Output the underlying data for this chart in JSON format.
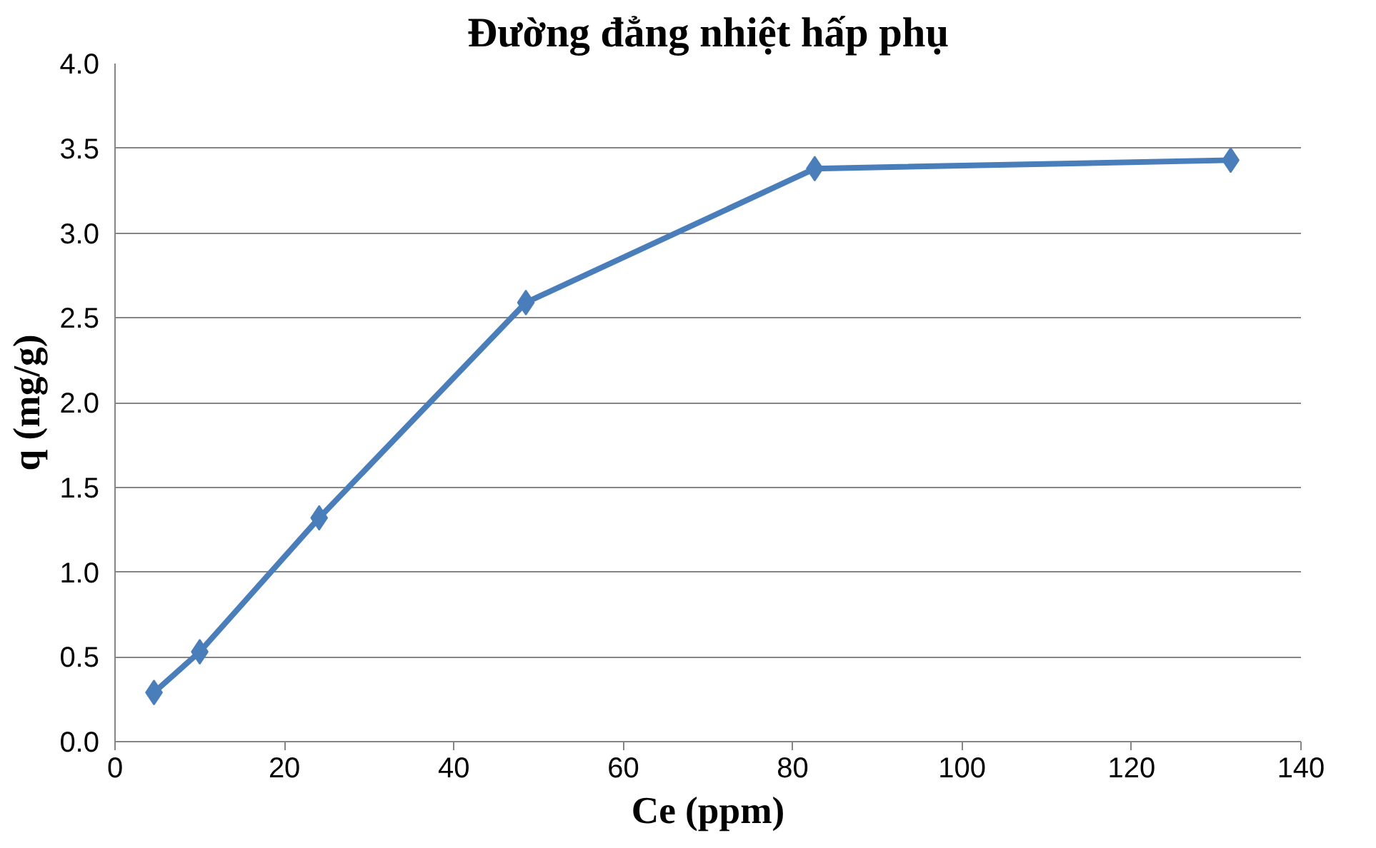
{
  "chart_data": {
    "type": "line",
    "title": "Đường đẳng nhiệt hấp phụ",
    "xlabel": "Ce (ppm)",
    "ylabel": "q (mg/g)",
    "x": [
      4.6,
      10.0,
      24.1,
      48.5,
      82.6,
      131.7
    ],
    "series": [
      {
        "color": "#4a7ebb",
        "values": [
          0.29,
          0.53,
          1.32,
          2.59,
          3.38,
          3.43
        ]
      }
    ],
    "xlim": [
      0,
      140
    ],
    "xticks": [
      0,
      20,
      40,
      60,
      80,
      100,
      120,
      140
    ],
    "ylim": [
      0,
      4.0
    ],
    "yticks": [
      {
        "value": 0,
        "label": "0.0"
      },
      {
        "value": 0.5,
        "label": "0.5"
      },
      {
        "value": 1,
        "label": "1.0"
      },
      {
        "value": 1.5,
        "label": "1.5"
      },
      {
        "value": 2,
        "label": "2.0"
      },
      {
        "value": 2.5,
        "label": "2.5"
      },
      {
        "value": 3,
        "label": "3.0"
      },
      {
        "value": 3.5,
        "label": "3.5"
      },
      {
        "value": 4,
        "label": "4.0"
      }
    ],
    "grid": "y",
    "marker": "diamond",
    "line_style": "solid"
  }
}
